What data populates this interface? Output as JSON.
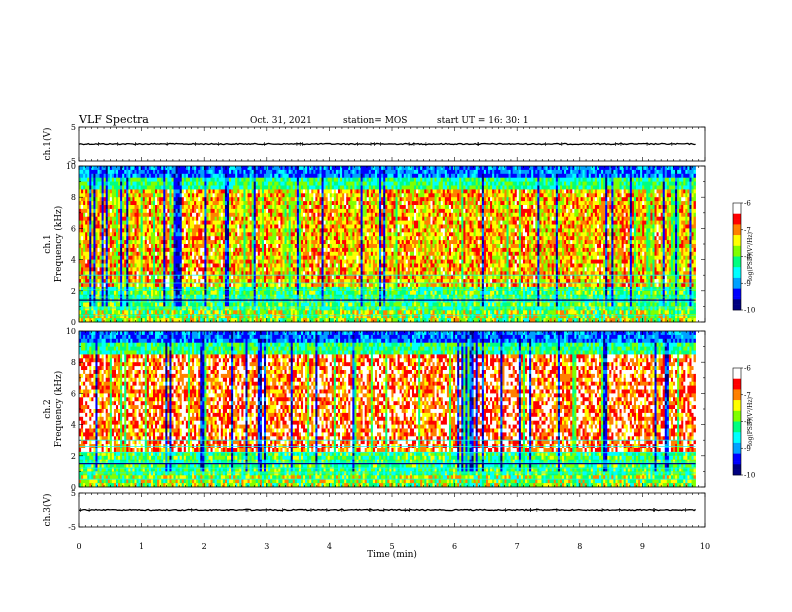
{
  "header": {
    "title": "VLF Spectra",
    "date": "Oct. 31, 2021",
    "station": "station= MOS",
    "start_ut": "start  UT =   16: 30: 1"
  },
  "chart_data": {
    "type": "heatmap",
    "x": {
      "label": "Time  (min)",
      "range": [
        0,
        10
      ],
      "ticks": [
        "0",
        "1",
        "2",
        "3",
        "4",
        "5",
        "6",
        "7",
        "8",
        "9",
        "10"
      ]
    },
    "panels": [
      {
        "id": "ch1-waveform",
        "ylabel": "ch.1(V)",
        "ylim": [
          -5,
          5
        ],
        "ticks": [
          "5",
          "-5"
        ],
        "baseline": 0
      },
      {
        "id": "ch1-spectrogram",
        "ylabel": "ch.1\nFrequency  (kHz)",
        "ylim": [
          0,
          10
        ],
        "ticks": [
          "0",
          "2",
          "4",
          "6",
          "8",
          "10"
        ],
        "colorbar": {
          "label": "log(PSD)(V²/Hz)",
          "range": [
            -10,
            -6
          ],
          "ticks": [
            "-6",
            "-7",
            "-8",
            "-9",
            "-10"
          ]
        }
      },
      {
        "id": "ch2-spectrogram",
        "ylabel": "ch.2\nFrequency  (kHz)",
        "ylim": [
          0,
          10
        ],
        "ticks": [
          "0",
          "2",
          "4",
          "6",
          "8",
          "10"
        ],
        "colorbar": {
          "label": "log(PSD)(V²/Hz)",
          "range": [
            -10,
            -6
          ],
          "ticks": [
            "-6",
            "-7",
            "-8",
            "-9",
            "-10"
          ]
        }
      },
      {
        "id": "ch3-waveform",
        "ylabel": "ch.3(V)",
        "ylim": [
          -5,
          5
        ],
        "ticks": [
          "5",
          "-5"
        ],
        "baseline": 0
      }
    ],
    "data_end_min": 9.85,
    "colormap": [
      "#000080",
      "#0000ff",
      "#00a0ff",
      "#00ffff",
      "#00ff80",
      "#80ff00",
      "#ffff00",
      "#ff8000",
      "#ff0000",
      "#ffffff"
    ]
  }
}
